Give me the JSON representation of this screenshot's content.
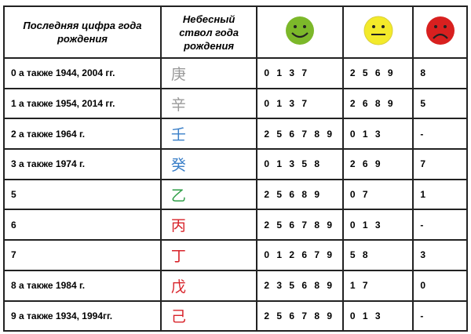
{
  "header": {
    "col_digit": "Последняя цифра года рождения",
    "col_stem": "Небесный ствол года рождения",
    "col_good_icon": "smiley-green-icon",
    "col_neutral_icon": "neutral-face-yellow-icon",
    "col_bad_icon": "sad-face-red-icon"
  },
  "colors": {
    "good": "#7cb82a",
    "neutral": "#f3ea2a",
    "bad": "#d8201f",
    "stem_gray": "#9a9a9a",
    "stem_blue": "#3a7fc8",
    "stem_green": "#2e9e46",
    "stem_red": "#d8232a"
  },
  "rows": [
    {
      "digit": "0 а также 1944, 2004 гг.",
      "stem": "庚",
      "stem_color": "#9a9a9a",
      "good": "0 1 3 7",
      "neutral": "2 5 6 9",
      "bad": "8"
    },
    {
      "digit": "1 а также 1954, 2014 гг.",
      "stem": "辛",
      "stem_color": "#9a9a9a",
      "good": "0 1 3 7",
      "neutral": "2 6 8 9",
      "bad": "5"
    },
    {
      "digit": "2 а также 1964 г.",
      "stem": "壬",
      "stem_color": "#3a7fc8",
      "good": "2 5 6 7 8 9",
      "neutral": "0 1 3",
      "bad": "-"
    },
    {
      "digit": "3 а также 1974 г.",
      "stem": "癸",
      "stem_color": "#3a7fc8",
      "good": "0 1 3 5 8",
      "neutral": "2 6 9",
      "bad": "7"
    },
    {
      "digit": "5",
      "stem": "乙",
      "stem_color": "#2e9e46",
      "good": "2 5 6 8 9",
      "neutral": "0 7",
      "bad": "1"
    },
    {
      "digit": "6",
      "stem": "丙",
      "stem_color": "#d8232a",
      "good": "2 5 6 7 8 9",
      "neutral": "0 1 3",
      "bad": "-"
    },
    {
      "digit": "7",
      "stem": "丁",
      "stem_color": "#d8232a",
      "good": "0 1 2 6 7 9",
      "neutral": "5 8",
      "bad": "3"
    },
    {
      "digit": "8  а также 1984 г.",
      "stem": "戊",
      "stem_color": "#d8232a",
      "good": "2 3 5 6 8 9",
      "neutral": "1 7",
      "bad": "0"
    },
    {
      "digit": "9  а также 1934, 1994гг.",
      "stem": "己",
      "stem_color": "#d8232a",
      "good": "2 5 6 7 8 9",
      "neutral": "0 1 3",
      "bad": "-"
    }
  ]
}
